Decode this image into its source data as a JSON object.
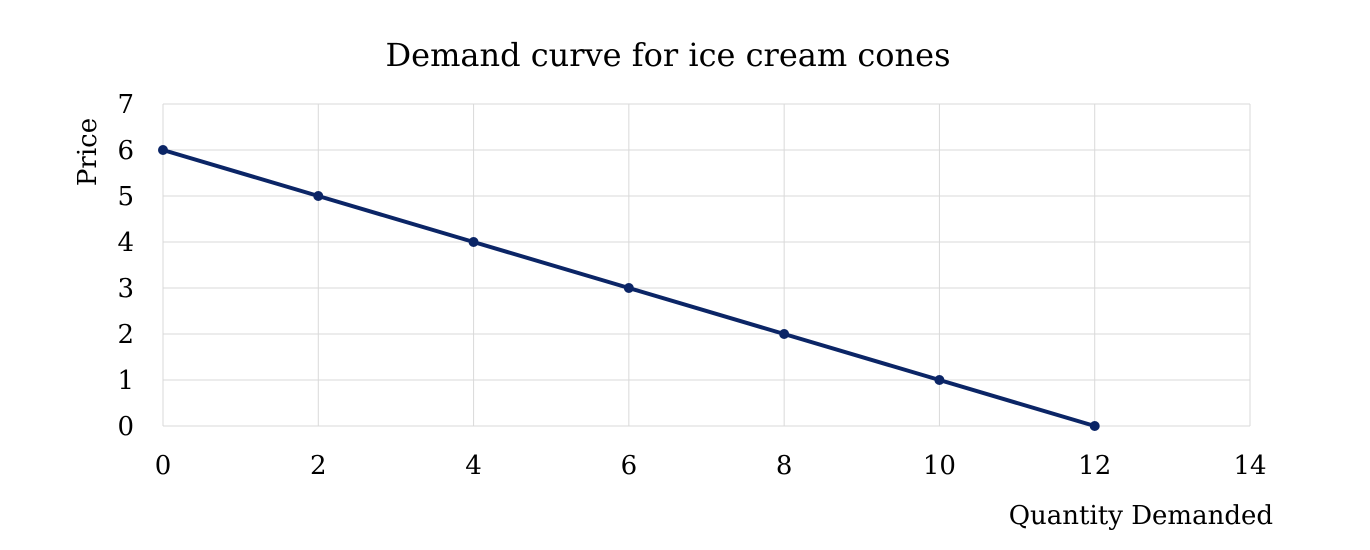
{
  "chart_data": {
    "type": "line",
    "title": "Demand curve for ice cream cones",
    "xlabel": "Quantity Demanded",
    "ylabel": "Price",
    "xlim": [
      0,
      14
    ],
    "ylim": [
      0,
      7
    ],
    "xticks": [
      0,
      2,
      4,
      6,
      8,
      10,
      12,
      14
    ],
    "yticks": [
      0,
      1,
      2,
      3,
      4,
      5,
      6,
      7
    ],
    "grid": true,
    "legend": "none",
    "series": [
      {
        "color": "#0b2566",
        "marker": "circle",
        "points": [
          {
            "x": 0,
            "y": 6
          },
          {
            "x": 2,
            "y": 5
          },
          {
            "x": 4,
            "y": 4
          },
          {
            "x": 6,
            "y": 3
          },
          {
            "x": 8,
            "y": 2
          },
          {
            "x": 10,
            "y": 1
          },
          {
            "x": 12,
            "y": 0
          }
        ]
      }
    ]
  }
}
